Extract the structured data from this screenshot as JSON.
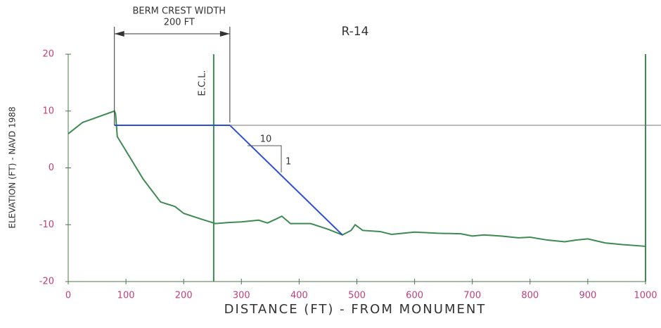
{
  "chart_data": {
    "type": "line",
    "title": "R-14",
    "x_label": "DISTANCE (FT) - FROM MONUMENT",
    "y_label": "ELEVATION (FT) - NAVD 1988",
    "xlim": [
      0,
      1000
    ],
    "ylim": [
      -20,
      20
    ],
    "xticks": [
      0,
      100,
      200,
      300,
      400,
      500,
      600,
      700,
      800,
      900,
      1000
    ],
    "yticks": [
      -20,
      -10,
      0,
      10,
      20
    ],
    "grid": false,
    "series": [
      {
        "color": "#3e8a52",
        "x": [
          0,
          25,
          80,
          82,
          85,
          100,
          130,
          160,
          185,
          200,
          230,
          255,
          280,
          300,
          330,
          345,
          360,
          370,
          385,
          420,
          450,
          475,
          490,
          497,
          510,
          540,
          560,
          580,
          600,
          640,
          680,
          700,
          720,
          750,
          780,
          800,
          830,
          860,
          880,
          900,
          930,
          960,
          1000
        ],
        "values": [
          6,
          8,
          10,
          9.5,
          5.5,
          3,
          -2,
          -6,
          -6.8,
          -8,
          -9,
          -9.8,
          -9.6,
          -9.5,
          -9.2,
          -9.7,
          -9,
          -8.5,
          -9.8,
          -9.8,
          -10.8,
          -11.8,
          -11,
          -10,
          -11,
          -11.2,
          -11.7,
          -11.5,
          -11.3,
          -11.5,
          -11.6,
          -12,
          -11.8,
          -12,
          -12.3,
          -12.2,
          -12.7,
          -13,
          -12.7,
          -12.5,
          -13.2,
          -13.5,
          -13.8
        ]
      },
      {
        "color": "#2a4fd0",
        "x": [
          80,
          280,
          475
        ],
        "values": [
          7.5,
          7.5,
          -11.8
        ]
      }
    ],
    "ecl": {
      "label": "E.C.L.",
      "x": 252
    },
    "dimension": {
      "lines": [
        "BERM CREST WIDTH",
        "200 FT"
      ],
      "x": [
        80,
        280
      ]
    },
    "slope": {
      "run_label": "10",
      "rise_label": "1"
    }
  }
}
